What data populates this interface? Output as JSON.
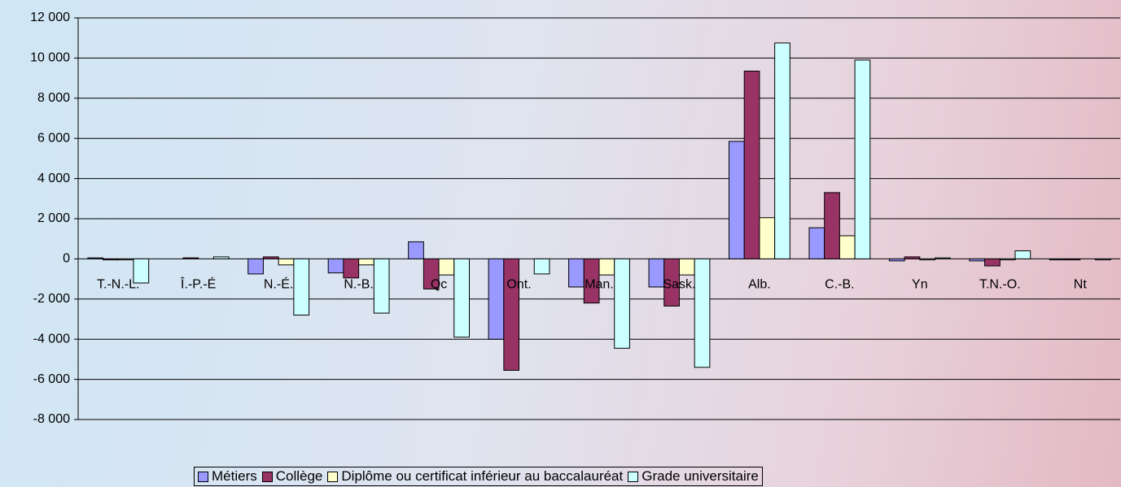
{
  "chart_data": {
    "type": "bar",
    "categories": [
      "T.-N.-L.",
      "Î.-P.-É",
      "N.-É.",
      "N.-B.",
      "Qc",
      "Ont.",
      "Man.",
      "Sask.",
      "Alb.",
      "C.-B.",
      "Yn",
      "T.N.-O.",
      "Nt"
    ],
    "series": [
      {
        "name": "Métiers",
        "color": "#9999ff",
        "values": [
          50,
          0,
          -750,
          -700,
          850,
          -4000,
          -1400,
          -1400,
          5850,
          1550,
          -100,
          -100,
          -50
        ]
      },
      {
        "name": "Collège",
        "color": "#993366",
        "values": [
          -50,
          50,
          100,
          -950,
          -1500,
          -5550,
          -2200,
          -2350,
          9350,
          3300,
          100,
          -350,
          -50
        ]
      },
      {
        "name": "Diplôme ou certificat inférieur au baccalauréat",
        "color": "#ffffcc",
        "values": [
          -50,
          0,
          -300,
          -300,
          -800,
          0,
          -800,
          -800,
          2050,
          1150,
          -50,
          -50,
          0
        ]
      },
      {
        "name": "Grade universitaire",
        "color": "#ccffff",
        "values": [
          -1200,
          100,
          -2800,
          -2700,
          -3900,
          -750,
          -4450,
          -5400,
          10750,
          9900,
          50,
          400,
          -50
        ]
      }
    ],
    "ylim": [
      -8000,
      12000
    ],
    "yticks": [
      {
        "value": -8000,
        "label": "-8 000"
      },
      {
        "value": -6000,
        "label": "-6 000"
      },
      {
        "value": -4000,
        "label": "-4 000"
      },
      {
        "value": -2000,
        "label": "-2 000"
      },
      0,
      {
        "value": 2000,
        "label": "2 000"
      },
      {
        "value": 4000,
        "label": "4 000"
      },
      {
        "value": 6000,
        "label": "6 000"
      },
      {
        "value": 8000,
        "label": "8 000"
      },
      {
        "value": 10000,
        "label": "10 000"
      },
      {
        "value": 12000,
        "label": "12 000"
      }
    ],
    "grid": true,
    "legend": "bottom"
  }
}
